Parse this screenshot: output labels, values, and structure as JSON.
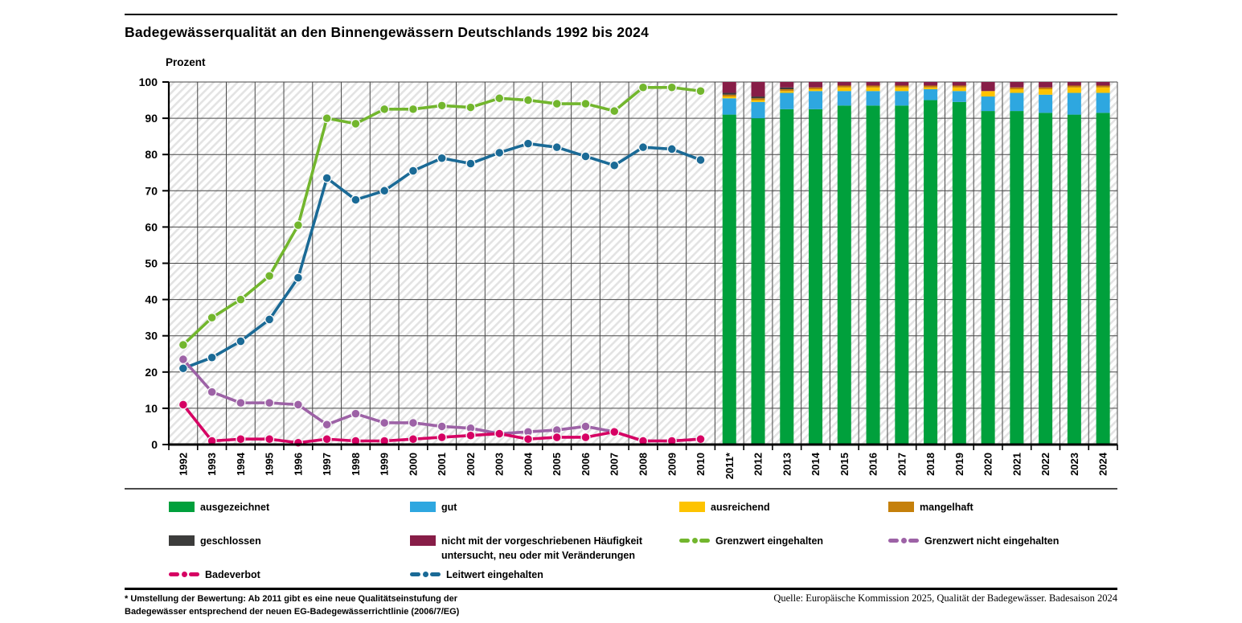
{
  "header": {
    "title": "Badegewässerqualität an den Binnengewässern Deutschlands 1992 bis 2024"
  },
  "chart_data": {
    "type": "mixed-line-and-stacked-bar",
    "ylabel": "Prozent",
    "ylim": [
      0,
      100
    ],
    "ytick_step": 10,
    "grid": true,
    "line_years": [
      "1992",
      "1993",
      "1994",
      "1995",
      "1996",
      "1997",
      "1998",
      "1999",
      "2000",
      "2001",
      "2002",
      "2003",
      "2004",
      "2005",
      "2006",
      "2007",
      "2008",
      "2009",
      "2010"
    ],
    "line_series": [
      {
        "name": "Grenzwert eingehalten",
        "color": "#72B62D",
        "values": [
          27.5,
          35,
          40,
          46.5,
          60.5,
          90,
          88.5,
          92.5,
          92.5,
          93.5,
          93,
          95.5,
          95,
          94,
          94,
          92,
          98.5,
          98.5,
          97.5
        ]
      },
      {
        "name": "Leitwert eingehalten",
        "color": "#1A6A96",
        "values": [
          21,
          24,
          28.5,
          34.5,
          46,
          73.5,
          67.5,
          70,
          75.5,
          79,
          77.5,
          80.5,
          83,
          82,
          79.5,
          77,
          82,
          81.5,
          78.5
        ]
      },
      {
        "name": "Grenzwert nicht eingehalten",
        "color": "#9D62A6",
        "values": [
          23.5,
          14.5,
          11.5,
          11.5,
          11,
          5.5,
          8.5,
          6,
          6,
          5,
          4.5,
          3,
          3.5,
          4,
          5,
          3.5,
          1,
          1,
          1.5
        ]
      },
      {
        "name": "Badeverbot",
        "color": "#D60063",
        "values": [
          11,
          1,
          1.5,
          1.5,
          0.5,
          1.5,
          1,
          1,
          1.5,
          2,
          2.5,
          3,
          1.5,
          2,
          2,
          3.5,
          1,
          1,
          1.5
        ]
      }
    ],
    "bar_years": [
      "2011*",
      "2012",
      "2013",
      "2014",
      "2015",
      "2016",
      "2017",
      "2018",
      "2019",
      "2020",
      "2021",
      "2022",
      "2023",
      "2024"
    ],
    "bar_series": [
      {
        "name": "ausgezeichnet",
        "color": "#00A03C",
        "values": [
          91,
          90,
          92.5,
          92.5,
          93.5,
          93.5,
          93.5,
          95,
          94.5,
          92,
          92,
          91.5,
          91,
          91.5
        ]
      },
      {
        "name": "gut",
        "color": "#2EA7E0",
        "values": [
          4.5,
          4.5,
          4.5,
          5,
          4,
          4,
          4,
          3,
          3,
          4,
          5,
          5,
          6,
          5.5
        ]
      },
      {
        "name": "ausreichend",
        "color": "#FDC300",
        "values": [
          0.5,
          0.5,
          0.5,
          0.5,
          1,
          1,
          1,
          0.5,
          1,
          1.5,
          1,
          1.5,
          1.5,
          1.5
        ]
      },
      {
        "name": "mangelhaft",
        "color": "#C5800B",
        "values": [
          0.5,
          0.5,
          0.5,
          0.5,
          0.5,
          0.5,
          0.5,
          0.5,
          0.5,
          0,
          0.5,
          0.5,
          0.5,
          0.5
        ]
      },
      {
        "name": "geschlossen",
        "color": "#3C3C3B",
        "values": [
          0.5,
          0.5,
          0.5,
          0,
          0,
          0,
          0,
          0,
          0,
          0,
          0,
          0,
          0,
          0
        ]
      },
      {
        "name": "nicht mit der vorgeschriebenen Häufigkeit untersucht, neu oder mit Veränderungen",
        "color": "#871D47",
        "values": [
          3,
          4,
          1.5,
          1.5,
          1,
          1,
          1,
          1,
          1,
          2.5,
          1.5,
          1.5,
          1,
          1
        ]
      }
    ]
  },
  "legend": {
    "items": [
      {
        "label": "ausgezeichnet",
        "marker": "swatch",
        "color": "#00A03C",
        "row": 0,
        "col": 0
      },
      {
        "label": "gut",
        "marker": "swatch",
        "color": "#2EA7E0",
        "row": 0,
        "col": 1
      },
      {
        "label": "ausreichend",
        "marker": "swatch",
        "color": "#FDC300",
        "row": 0,
        "col": 2
      },
      {
        "label": "mangelhaft",
        "marker": "swatch",
        "color": "#C5800B",
        "row": 0,
        "col": 3
      },
      {
        "label": "geschlossen",
        "marker": "swatch",
        "color": "#3C3C3B",
        "row": 1,
        "col": 0
      },
      {
        "label": "nicht mit der vorgeschriebenen Häufigkeit untersucht, neu oder mit Veränderungen",
        "marker": "swatch",
        "color": "#871D47",
        "row": 1,
        "col": 1
      },
      {
        "label": "Grenzwert eingehalten",
        "marker": "line",
        "color": "#72B62D",
        "row": 1,
        "col": 2
      },
      {
        "label": "Grenzwert nicht eingehalten",
        "marker": "line",
        "color": "#9D62A6",
        "row": 1,
        "col": 3
      },
      {
        "label": "Badeverbot",
        "marker": "line",
        "color": "#D60063",
        "row": 2,
        "col": 0
      },
      {
        "label": "Leitwert eingehalten",
        "marker": "line",
        "color": "#1A6A96",
        "row": 2,
        "col": 1
      }
    ]
  },
  "footer": {
    "footnote_line1": "* Umstellung der Bewertung: Ab 2011 gibt es eine neue Qualitätseinstufung der",
    "footnote_line2": "Badegewässer entsprechend der neuen EG-Badegewässerrichtlinie (2006/7/EG)",
    "source": "Quelle: Europäische Kommission 2025, Qualität der Badegewässer. Badesaison 2024"
  }
}
